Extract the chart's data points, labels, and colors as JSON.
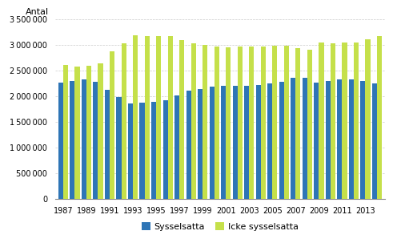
{
  "years": [
    1987,
    1988,
    1989,
    1990,
    1991,
    1992,
    1993,
    1994,
    1995,
    1996,
    1997,
    1998,
    1999,
    2000,
    2001,
    2002,
    2003,
    2004,
    2005,
    2006,
    2007,
    2008,
    2009,
    2010,
    2011,
    2012,
    2013,
    2014
  ],
  "sysselsatta": [
    2270000,
    2300000,
    2330000,
    2280000,
    2130000,
    1990000,
    1860000,
    1880000,
    1900000,
    1930000,
    2020000,
    2110000,
    2145000,
    2195000,
    2205000,
    2210000,
    2210000,
    2225000,
    2255000,
    2280000,
    2360000,
    2365000,
    2275000,
    2295000,
    2335000,
    2330000,
    2295000,
    2260000
  ],
  "icke_sysselsatta": [
    2620000,
    2590000,
    2600000,
    2650000,
    2875000,
    3040000,
    3185000,
    3175000,
    3170000,
    3175000,
    3105000,
    3030000,
    3010000,
    2975000,
    2965000,
    2975000,
    2975000,
    2980000,
    2990000,
    2995000,
    2935000,
    2915000,
    3050000,
    3035000,
    3045000,
    3050000,
    3110000,
    3170000
  ],
  "bar_color_sysselsatta": "#2e75b6",
  "bar_color_icke": "#c5e04a",
  "ylabel": "Antal",
  "ylim": [
    0,
    3500000
  ],
  "yticks": [
    0,
    500000,
    1000000,
    1500000,
    2000000,
    2500000,
    3000000,
    3500000
  ],
  "legend_sysselsatta": "Sysselsatta",
  "legend_icke": "Icke sysselsatta",
  "grid_color": "#cccccc",
  "background_color": "#ffffff",
  "tick_years": [
    1987,
    1989,
    1991,
    1993,
    1995,
    1997,
    1999,
    2001,
    2003,
    2005,
    2007,
    2009,
    2011,
    2013
  ]
}
